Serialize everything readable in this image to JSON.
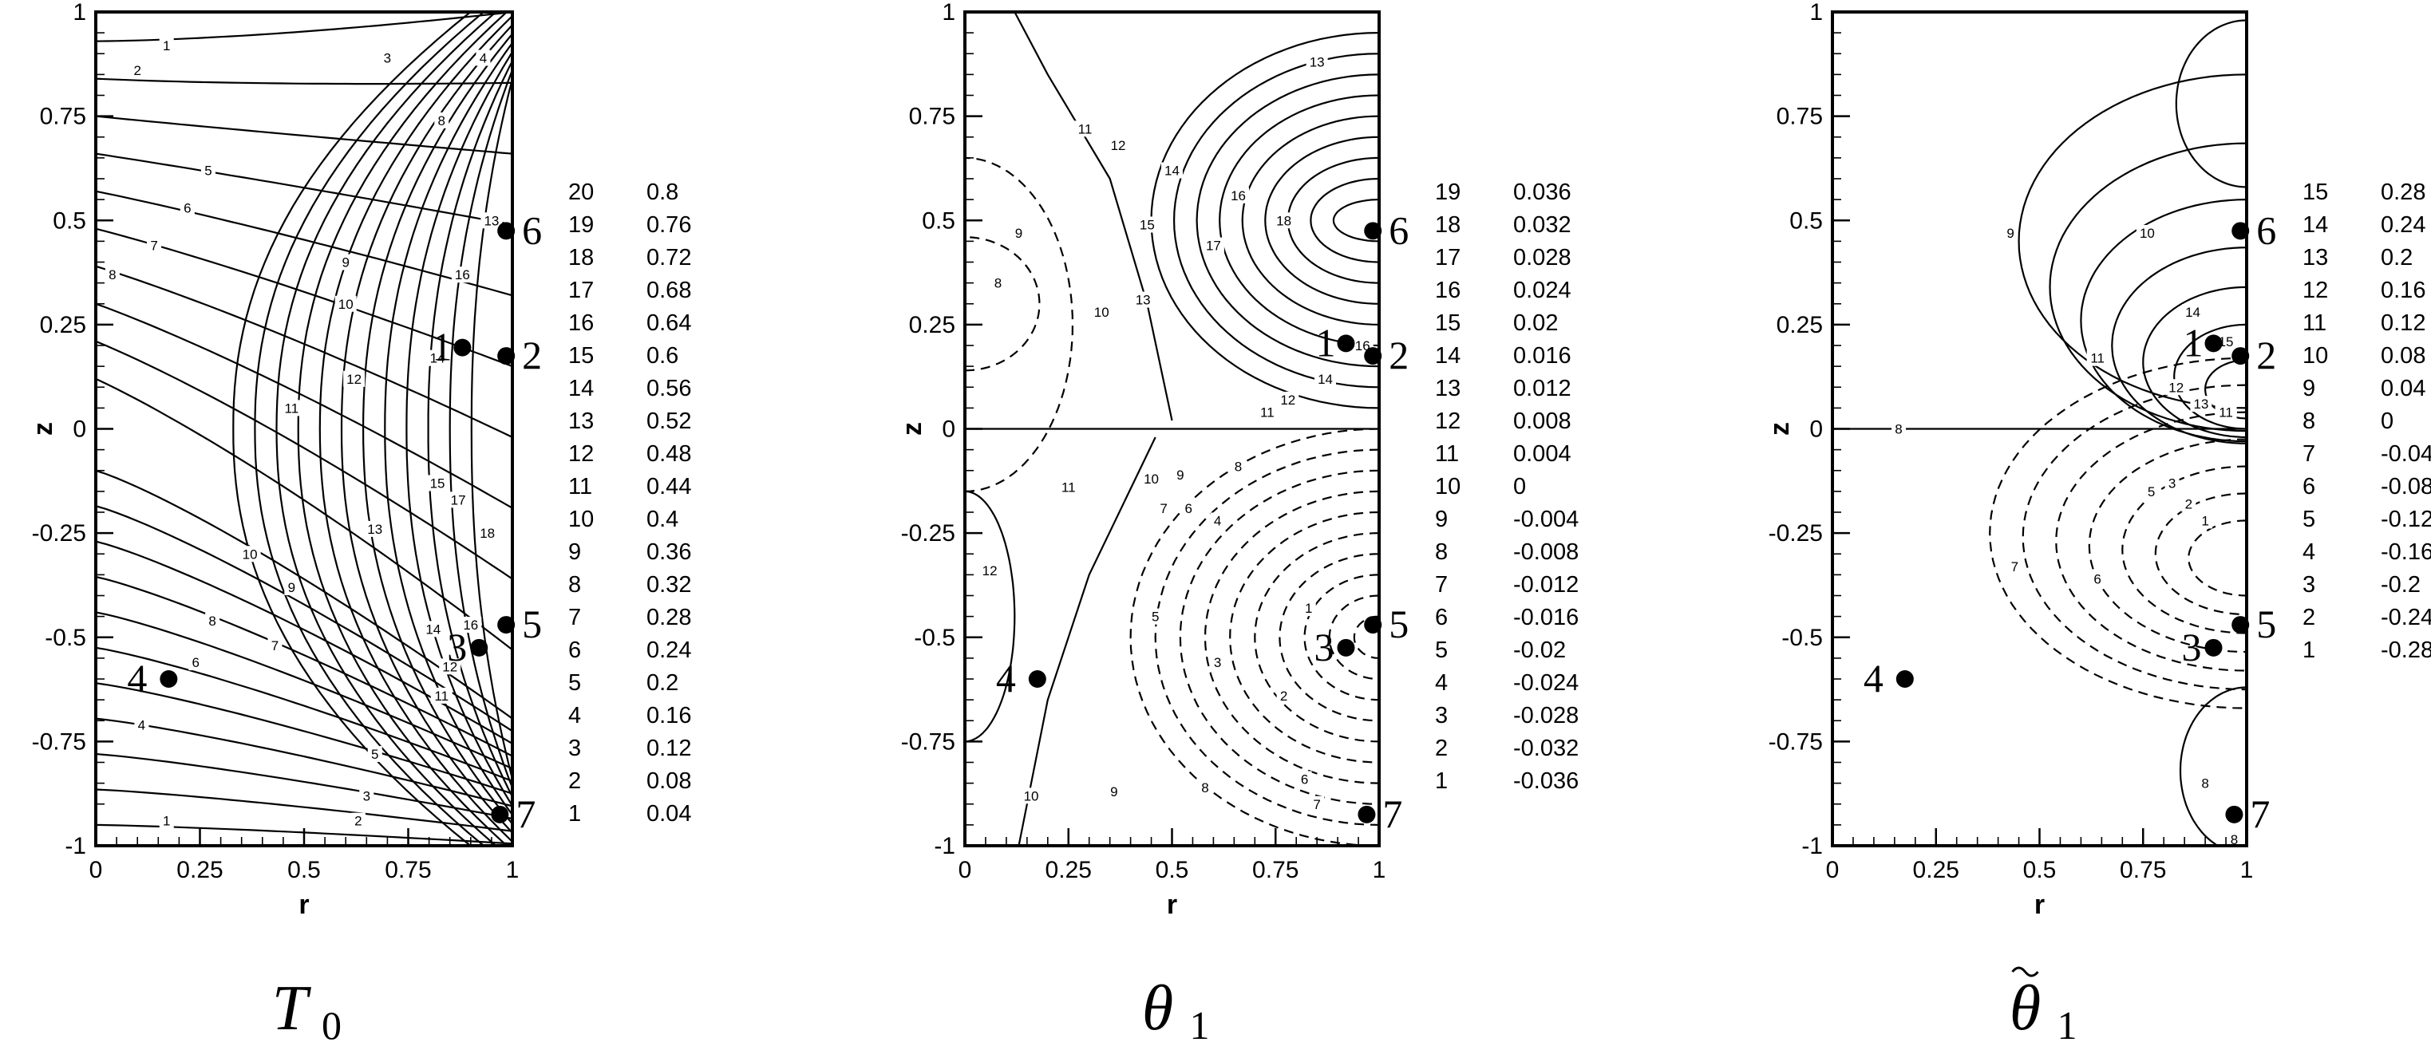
{
  "chart_data": [
    {
      "type": "contour",
      "panel": "T0",
      "title": "T",
      "title_subscript": "0",
      "title_tilde": false,
      "xlabel": "r",
      "ylabel": "z",
      "xlim": [
        0,
        1
      ],
      "ylim": [
        -1,
        1
      ],
      "x_ticks": [
        "0",
        "0.25",
        "0.5",
        "0.75",
        "1"
      ],
      "y_ticks": [
        "1",
        "0.75",
        "0.5",
        "0.25",
        "0",
        "-0.25",
        "-0.5",
        "-0.75",
        "-1"
      ],
      "legend": {
        "levels": [
          "20",
          "19",
          "18",
          "17",
          "16",
          "15",
          "14",
          "13",
          "12",
          "11",
          "10",
          "9",
          "8",
          "7",
          "6",
          "5",
          "4",
          "3",
          "2",
          "1"
        ],
        "values": [
          "0.8",
          "0.76",
          "0.72",
          "0.68",
          "0.64",
          "0.6",
          "0.56",
          "0.52",
          "0.48",
          "0.44",
          "0.4",
          "0.36",
          "0.32",
          "0.28",
          "0.24",
          "0.2",
          "0.16",
          "0.12",
          "0.08",
          "0.04"
        ]
      },
      "points": [
        {
          "label": "1",
          "r": 0.88,
          "z": 0.195
        },
        {
          "label": "2",
          "r": 0.985,
          "z": 0.175
        },
        {
          "label": "3",
          "r": 0.92,
          "z": -0.525
        },
        {
          "label": "4",
          "r": 0.175,
          "z": -0.6
        },
        {
          "label": "5",
          "r": 0.985,
          "z": -0.47
        },
        {
          "label": "6",
          "r": 0.985,
          "z": 0.475
        },
        {
          "label": "7",
          "r": 0.97,
          "z": -0.925
        }
      ],
      "contour_labels": [
        {
          "text": "1",
          "r": 0.17,
          "z": 0.92
        },
        {
          "text": "2",
          "r": 0.1,
          "z": 0.86
        },
        {
          "text": "3",
          "r": 0.7,
          "z": 0.89
        },
        {
          "text": "4",
          "r": 0.93,
          "z": 0.89
        },
        {
          "text": "5",
          "r": 0.27,
          "z": 0.62
        },
        {
          "text": "6",
          "r": 0.22,
          "z": 0.53
        },
        {
          "text": "7",
          "r": 0.14,
          "z": 0.44
        },
        {
          "text": "8",
          "r": 0.04,
          "z": 0.37
        },
        {
          "text": "8",
          "r": 0.83,
          "z": 0.74
        },
        {
          "text": "9",
          "r": 0.6,
          "z": 0.4
        },
        {
          "text": "10",
          "r": 0.6,
          "z": 0.3
        },
        {
          "text": "11",
          "r": 0.47,
          "z": 0.05
        },
        {
          "text": "12",
          "r": 0.62,
          "z": 0.12
        },
        {
          "text": "13",
          "r": 0.95,
          "z": 0.5
        },
        {
          "text": "14",
          "r": 0.82,
          "z": 0.17
        },
        {
          "text": "15",
          "r": 0.82,
          "z": -0.13
        },
        {
          "text": "16",
          "r": 0.88,
          "z": 0.37
        },
        {
          "text": "17",
          "r": 0.87,
          "z": -0.17
        },
        {
          "text": "18",
          "r": 0.94,
          "z": -0.25
        },
        {
          "text": "13",
          "r": 0.67,
          "z": -0.24
        },
        {
          "text": "10",
          "r": 0.37,
          "z": -0.3
        },
        {
          "text": "9",
          "r": 0.47,
          "z": -0.38
        },
        {
          "text": "8",
          "r": 0.28,
          "z": -0.46
        },
        {
          "text": "7",
          "r": 0.43,
          "z": -0.52
        },
        {
          "text": "6",
          "r": 0.24,
          "z": -0.56
        },
        {
          "text": "5",
          "r": 0.67,
          "z": -0.78
        },
        {
          "text": "4",
          "r": 0.11,
          "z": -0.71
        },
        {
          "text": "3",
          "r": 0.65,
          "z": -0.88
        },
        {
          "text": "2",
          "r": 0.63,
          "z": -0.94
        },
        {
          "text": "1",
          "r": 0.17,
          "z": -0.94
        },
        {
          "text": "14",
          "r": 0.81,
          "z": -0.48
        },
        {
          "text": "16",
          "r": 0.9,
          "z": -0.47
        },
        {
          "text": "12",
          "r": 0.85,
          "z": -0.57
        },
        {
          "text": "11",
          "r": 0.83,
          "z": -0.64
        }
      ]
    },
    {
      "type": "contour",
      "panel": "theta1",
      "title": "θ",
      "title_subscript": "1",
      "title_tilde": false,
      "xlabel": "r",
      "ylabel": "z",
      "xlim": [
        0,
        1
      ],
      "ylim": [
        -1,
        1
      ],
      "x_ticks": [
        "0",
        "0.25",
        "0.5",
        "0.75",
        "1"
      ],
      "y_ticks": [
        "1",
        "0.75",
        "0.5",
        "0.25",
        "0",
        "-0.25",
        "-0.5",
        "-0.75",
        "-1"
      ],
      "legend": {
        "levels": [
          "19",
          "18",
          "17",
          "16",
          "15",
          "14",
          "13",
          "12",
          "11",
          "10",
          "9",
          "8",
          "7",
          "6",
          "5",
          "4",
          "3",
          "2",
          "1"
        ],
        "values": [
          "0.036",
          "0.032",
          "0.028",
          "0.024",
          "0.02",
          "0.016",
          "0.012",
          "0.008",
          "0.004",
          "0",
          "-0.004",
          "-0.008",
          "-0.012",
          "-0.016",
          "-0.02",
          "-0.024",
          "-0.028",
          "-0.032",
          "-0.036"
        ]
      },
      "points": [
        {
          "label": "1",
          "r": 0.92,
          "z": 0.205
        },
        {
          "label": "2",
          "r": 0.985,
          "z": 0.175
        },
        {
          "label": "3",
          "r": 0.92,
          "z": -0.525
        },
        {
          "label": "4",
          "r": 0.175,
          "z": -0.6
        },
        {
          "label": "5",
          "r": 0.985,
          "z": -0.47
        },
        {
          "label": "6",
          "r": 0.985,
          "z": 0.475
        },
        {
          "label": "7",
          "r": 0.97,
          "z": -0.925
        }
      ],
      "contour_labels": [
        {
          "text": "13",
          "r": 0.85,
          "z": 0.88
        },
        {
          "text": "11",
          "r": 0.29,
          "z": 0.72
        },
        {
          "text": "12",
          "r": 0.37,
          "z": 0.68
        },
        {
          "text": "14",
          "r": 0.5,
          "z": 0.62
        },
        {
          "text": "15",
          "r": 0.44,
          "z": 0.49
        },
        {
          "text": "16",
          "r": 0.66,
          "z": 0.56
        },
        {
          "text": "17",
          "r": 0.6,
          "z": 0.44
        },
        {
          "text": "18",
          "r": 0.77,
          "z": 0.5
        },
        {
          "text": "9",
          "r": 0.13,
          "z": 0.47
        },
        {
          "text": "8",
          "r": 0.08,
          "z": 0.35
        },
        {
          "text": "10",
          "r": 0.33,
          "z": 0.28
        },
        {
          "text": "13",
          "r": 0.43,
          "z": 0.31
        },
        {
          "text": "12",
          "r": 0.78,
          "z": 0.07
        },
        {
          "text": "14",
          "r": 0.87,
          "z": 0.12
        },
        {
          "text": "11",
          "r": 0.73,
          "z": 0.04
        },
        {
          "text": "16",
          "r": 0.96,
          "z": 0.2
        },
        {
          "text": "10",
          "r": 0.45,
          "z": -0.12
        },
        {
          "text": "9",
          "r": 0.52,
          "z": -0.11
        },
        {
          "text": "8",
          "r": 0.66,
          "z": -0.09
        },
        {
          "text": "7",
          "r": 0.48,
          "z": -0.19
        },
        {
          "text": "6",
          "r": 0.54,
          "z": -0.19
        },
        {
          "text": "4",
          "r": 0.61,
          "z": -0.22
        },
        {
          "text": "5",
          "r": 0.46,
          "z": -0.45
        },
        {
          "text": "3",
          "r": 0.61,
          "z": -0.56
        },
        {
          "text": "2",
          "r": 0.77,
          "z": -0.64
        },
        {
          "text": "1",
          "r": 0.83,
          "z": -0.43
        },
        {
          "text": "8",
          "r": 0.58,
          "z": -0.86
        },
        {
          "text": "9",
          "r": 0.36,
          "z": -0.87
        },
        {
          "text": "6",
          "r": 0.82,
          "z": -0.84
        },
        {
          "text": "7",
          "r": 0.85,
          "z": -0.9
        },
        {
          "text": "11",
          "r": 0.25,
          "z": -0.14
        },
        {
          "text": "12",
          "r": 0.06,
          "z": -0.34
        },
        {
          "text": "10",
          "r": 0.16,
          "z": -0.88
        }
      ]
    },
    {
      "type": "contour",
      "panel": "theta1_tilde",
      "title": "θ",
      "title_subscript": "1",
      "title_tilde": true,
      "xlabel": "r",
      "ylabel": "z",
      "xlim": [
        0,
        1
      ],
      "ylim": [
        -1,
        1
      ],
      "x_ticks": [
        "0",
        "0.25",
        "0.5",
        "0.75",
        "1"
      ],
      "y_ticks": [
        "1",
        "0.75",
        "0.5",
        "0.25",
        "0",
        "-0.25",
        "-0.5",
        "-0.75",
        "-1"
      ],
      "legend": {
        "levels": [
          "15",
          "14",
          "13",
          "12",
          "11",
          "10",
          "9",
          "8",
          "7",
          "6",
          "5",
          "4",
          "3",
          "2",
          "1"
        ],
        "values": [
          "0.28",
          "0.24",
          "0.2",
          "0.16",
          "0.12",
          "0.08",
          "0.04",
          "0",
          "-0.04",
          "-0.08",
          "-0.12",
          "-0.16",
          "-0.2",
          "-0.24",
          "-0.28"
        ]
      },
      "points": [
        {
          "label": "1",
          "r": 0.92,
          "z": 0.205
        },
        {
          "label": "2",
          "r": 0.985,
          "z": 0.175
        },
        {
          "label": "3",
          "r": 0.92,
          "z": -0.525
        },
        {
          "label": "4",
          "r": 0.175,
          "z": -0.6
        },
        {
          "label": "5",
          "r": 0.985,
          "z": -0.47
        },
        {
          "label": "6",
          "r": 0.985,
          "z": 0.475
        },
        {
          "label": "7",
          "r": 0.97,
          "z": -0.925
        }
      ],
      "contour_labels": [
        {
          "text": "9",
          "r": 0.43,
          "z": 0.47
        },
        {
          "text": "10",
          "r": 0.76,
          "z": 0.47
        },
        {
          "text": "11",
          "r": 0.64,
          "z": 0.17
        },
        {
          "text": "12",
          "r": 0.83,
          "z": 0.1
        },
        {
          "text": "13",
          "r": 0.89,
          "z": 0.06
        },
        {
          "text": "14",
          "r": 0.87,
          "z": 0.28
        },
        {
          "text": "15",
          "r": 0.95,
          "z": 0.21
        },
        {
          "text": "8",
          "r": 0.16,
          "z": 0
        },
        {
          "text": "11",
          "r": 0.95,
          "z": 0.04
        },
        {
          "text": "7",
          "r": 0.44,
          "z": -0.33
        },
        {
          "text": "6",
          "r": 0.64,
          "z": -0.36
        },
        {
          "text": "5",
          "r": 0.77,
          "z": -0.15
        },
        {
          "text": "3",
          "r": 0.82,
          "z": -0.13
        },
        {
          "text": "2",
          "r": 0.86,
          "z": -0.18
        },
        {
          "text": "1",
          "r": 0.9,
          "z": -0.22
        },
        {
          "text": "8",
          "r": 0.9,
          "z": -0.85
        },
        {
          "text": "8",
          "r": 0.97,
          "z": -0.985
        }
      ]
    }
  ]
}
